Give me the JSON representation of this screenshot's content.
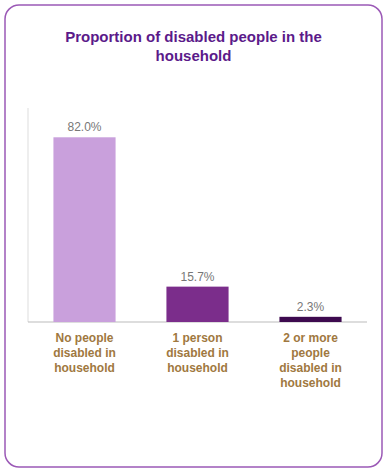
{
  "chart_data": {
    "type": "bar",
    "title": "Proportion of disabled people in the\nhousehold",
    "categories": [
      "No people\ndisabled in\nhousehold",
      "1 person\ndisabled in\nhousehold",
      "2 or more\npeople\ndisabled in\nhousehold"
    ],
    "values": [
      82.0,
      15.7,
      2.3
    ],
    "value_labels": [
      "82.0%",
      "15.7%",
      "2.3%"
    ],
    "colors": [
      "#c9a0dc",
      "#7b2d8b",
      "#3d0a4f"
    ],
    "ylim": [
      0,
      95
    ],
    "grid": false,
    "data_labels": true,
    "tick_labels": "x"
  }
}
